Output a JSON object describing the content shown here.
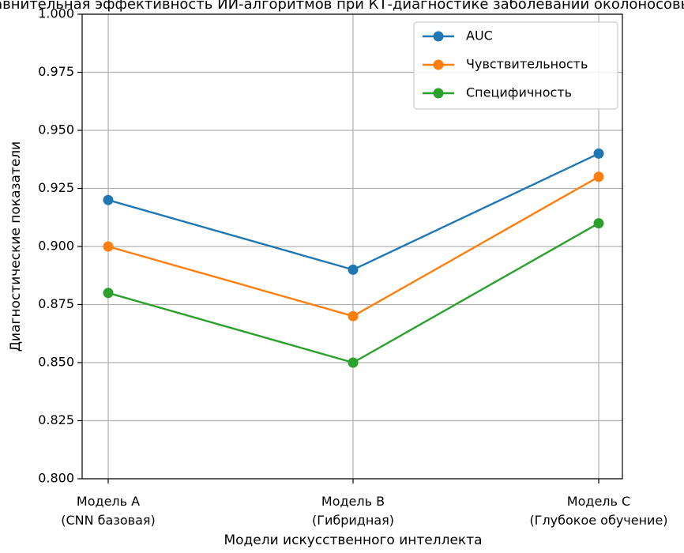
{
  "chart_data": {
    "type": "line",
    "title": "Сравнительная эффективность ИИ-алгоритмов при КТ-диагностике заболеваний околоносовых пазух",
    "xlabel": "Модели искусственного интеллекта",
    "ylabel": "Диагностические показатели",
    "categories": [
      [
        "Модель A",
        "(CNN базовая)"
      ],
      [
        "Модель B",
        "(Гибридная)"
      ],
      [
        "Модель C",
        "(Глубокое обучение)"
      ]
    ],
    "ylim": [
      0.8,
      1.0
    ],
    "yticks": [
      "0.800",
      "0.825",
      "0.850",
      "0.875",
      "0.900",
      "0.925",
      "0.950",
      "0.975",
      "1.000"
    ],
    "grid": true,
    "legend_position": "top-right",
    "series": [
      {
        "name": "AUC",
        "color": "#1f77b4",
        "values": [
          0.92,
          0.89,
          0.94
        ]
      },
      {
        "name": "Чувствительность",
        "color": "#ff7f0e",
        "values": [
          0.9,
          0.87,
          0.93
        ]
      },
      {
        "name": "Специфичность",
        "color": "#2ca02c",
        "values": [
          0.88,
          0.85,
          0.91
        ]
      }
    ]
  }
}
